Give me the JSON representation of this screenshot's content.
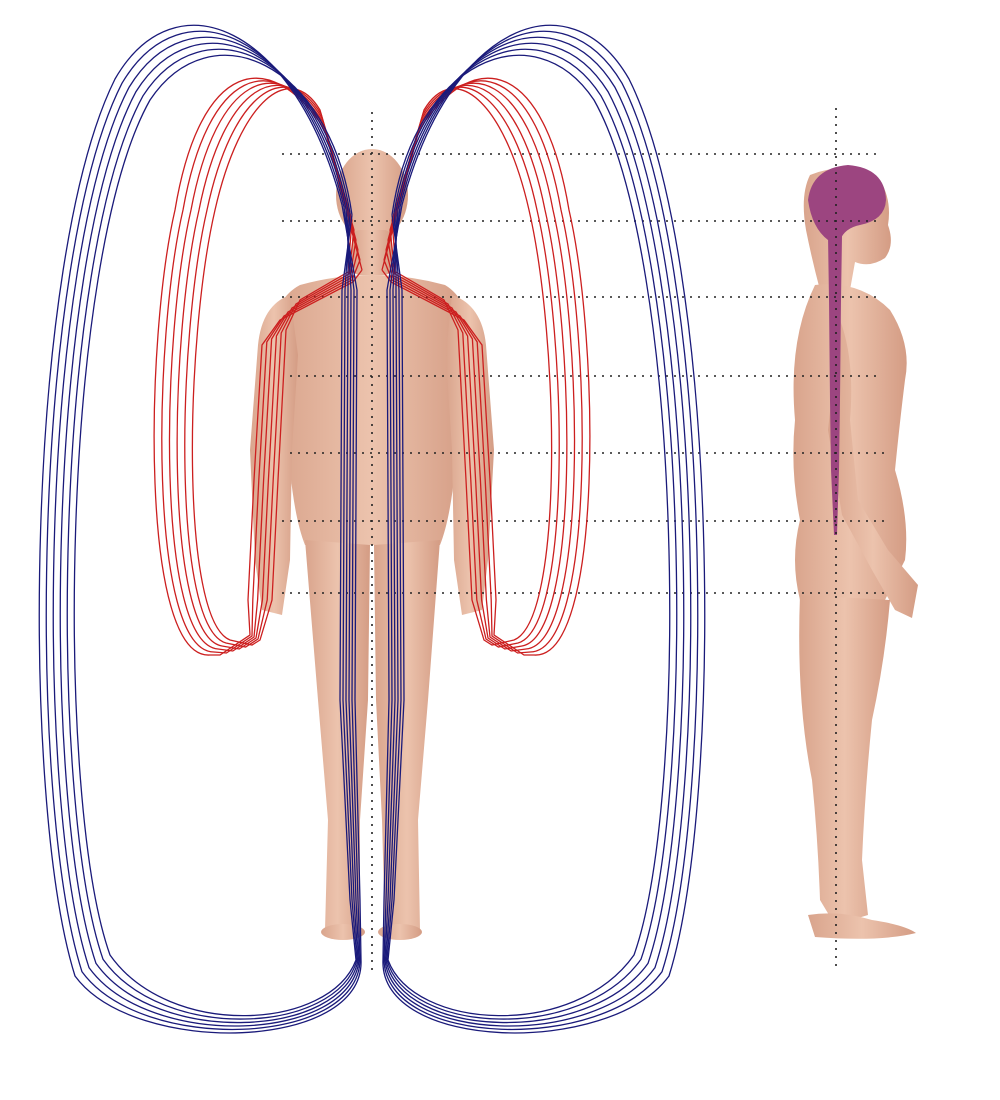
{
  "diagram": {
    "figures": [
      {
        "view": "front",
        "color": "#e6b8a0"
      },
      {
        "view": "side",
        "color": "#e6b8a0"
      }
    ],
    "field_lines": {
      "outer_loops": {
        "color": "#1a1a7a",
        "count_per_side": 6
      },
      "inner_loops": {
        "color": "#cc1f1f",
        "count_per_side": 6
      }
    },
    "nervous_system": {
      "color": "#9c4580",
      "parts": [
        "brain",
        "spinal-cord"
      ]
    },
    "guide_lines": {
      "color": "#222222",
      "style": "dotted",
      "horizontal_count": 7,
      "vertical_count": 2
    }
  }
}
